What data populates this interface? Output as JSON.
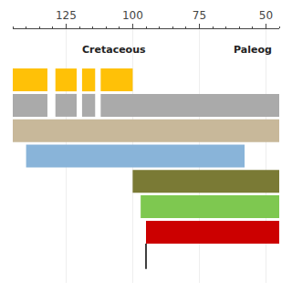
{
  "chart_data": {
    "type": "bar",
    "orientation": "horizontal",
    "categories": [
      null,
      null,
      null,
      null,
      null,
      null,
      null
    ],
    "bars": [
      {
        "segments": [
          {
            "start": 145,
            "end": 132,
            "color": "#FFC107"
          },
          {
            "start": 131,
            "end": 129,
            "color": "#FFFFFF"
          },
          {
            "start": 129,
            "end": 121,
            "color": "#FFC107"
          },
          {
            "start": 121,
            "end": 119,
            "color": "#FFFFFF"
          },
          {
            "start": 119,
            "end": 114,
            "color": "#FFC107"
          },
          {
            "start": 114,
            "end": 112,
            "color": "#FFFFFF"
          },
          {
            "start": 112,
            "end": 100,
            "color": "#FFC107"
          }
        ]
      },
      {
        "segments": [
          {
            "start": 145,
            "end": 132,
            "color": "#AAAAAA"
          },
          {
            "start": 131,
            "end": 129,
            "color": "#FFFFFF"
          },
          {
            "start": 129,
            "end": 121,
            "color": "#AAAAAA"
          },
          {
            "start": 121,
            "end": 119,
            "color": "#FFFFFF"
          },
          {
            "start": 119,
            "end": 114,
            "color": "#AAAAAA"
          },
          {
            "start": 114,
            "end": 112,
            "color": "#FFFFFF"
          },
          {
            "start": 112,
            "end": 45,
            "color": "#AAAAAA"
          }
        ]
      },
      {
        "segments": [
          {
            "start": 145,
            "end": 45,
            "color": "#C8B89A"
          }
        ]
      },
      {
        "segments": [
          {
            "start": 140,
            "end": 58,
            "color": "#89B4D9"
          }
        ]
      },
      {
        "segments": [
          {
            "start": 100,
            "end": 45,
            "color": "#7A7A35"
          }
        ]
      },
      {
        "segments": [
          {
            "start": 97,
            "end": 45,
            "color": "#7EC850"
          }
        ]
      },
      {
        "segments": [
          {
            "start": 95,
            "end": 45,
            "color": "#CC0000"
          }
        ]
      }
    ],
    "needle": {
      "x": 95,
      "color": "#000000"
    },
    "annotations": [
      {
        "text": "Cretaceous",
        "x": 107
      },
      {
        "text": "Paleog",
        "x": 55
      }
    ],
    "xlim": [
      145,
      45
    ],
    "xticks": [
      125,
      100,
      75,
      50
    ],
    "grid": true,
    "tick_labels": "x"
  }
}
